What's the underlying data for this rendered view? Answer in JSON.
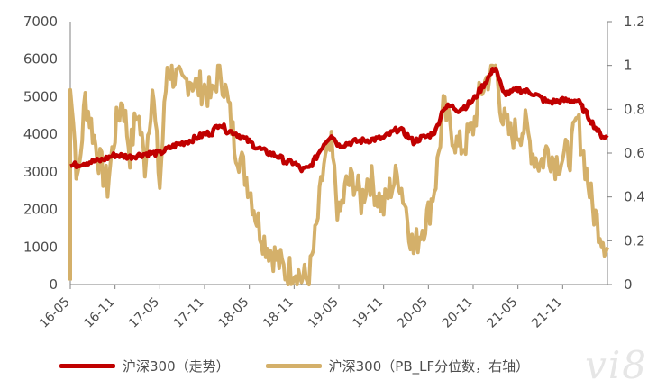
{
  "colors": {
    "index": "#c00000",
    "pb": "#d4b06a",
    "axis": "#808080",
    "text": "#4d4d4d"
  },
  "watermark": "vi8",
  "chart_data": {
    "type": "line",
    "x_categories": [
      "16-05",
      "16-11",
      "17-05",
      "17-11",
      "18-05",
      "18-11",
      "19-05",
      "19-11",
      "20-05",
      "20-11",
      "21-05",
      "21-11"
    ],
    "y_left": {
      "ticks": [
        "0",
        "1000",
        "2000",
        "3000",
        "4000",
        "5000",
        "6000",
        "7000"
      ],
      "ylim": [
        0,
        7000
      ]
    },
    "y_right": {
      "ticks": [
        "0",
        "0.2",
        "0.4",
        "0.6",
        "0.8",
        "1",
        "1.2"
      ],
      "ylim": [
        0,
        1.2
      ]
    },
    "legend_position": "bottom",
    "series": [
      {
        "name": "沪深300（走势）",
        "axis": "left",
        "color": "#c00000",
        "points": [
          [
            "16-05",
            3150
          ],
          [
            "16-07",
            3250
          ],
          [
            "16-09",
            3300
          ],
          [
            "16-11",
            3450
          ],
          [
            "17-01",
            3400
          ],
          [
            "17-03",
            3480
          ],
          [
            "17-05",
            3500
          ],
          [
            "17-07",
            3700
          ],
          [
            "17-09",
            3830
          ],
          [
            "17-11",
            4000
          ],
          [
            "17-12",
            4050
          ],
          [
            "18-01",
            4300
          ],
          [
            "18-02",
            4100
          ],
          [
            "18-03",
            4050
          ],
          [
            "18-05",
            3800
          ],
          [
            "18-06",
            3650
          ],
          [
            "18-07",
            3550
          ],
          [
            "18-09",
            3400
          ],
          [
            "18-10",
            3250
          ],
          [
            "18-11",
            3250
          ],
          [
            "18-12",
            3050
          ],
          [
            "19-01",
            3100
          ],
          [
            "19-02",
            3400
          ],
          [
            "19-03",
            3750
          ],
          [
            "19-04",
            4000
          ],
          [
            "19-05",
            3700
          ],
          [
            "19-07",
            3800
          ],
          [
            "19-09",
            3850
          ],
          [
            "19-11",
            3900
          ],
          [
            "20-01",
            4150
          ],
          [
            "20-02",
            4000
          ],
          [
            "20-03",
            3800
          ],
          [
            "20-04",
            3900
          ],
          [
            "20-05",
            3950
          ],
          [
            "20-06",
            4100
          ],
          [
            "20-07",
            4700
          ],
          [
            "20-08",
            4750
          ],
          [
            "20-09",
            4650
          ],
          [
            "20-10",
            4750
          ],
          [
            "20-11",
            4900
          ],
          [
            "20-12",
            5200
          ],
          [
            "21-01",
            5500
          ],
          [
            "21-02",
            5800
          ],
          [
            "21-03",
            5100
          ],
          [
            "21-04",
            5100
          ],
          [
            "21-05",
            5200
          ],
          [
            "21-07",
            5100
          ],
          [
            "21-09",
            4850
          ],
          [
            "21-11",
            4900
          ],
          [
            "22-01",
            4900
          ],
          [
            "22-02",
            4600
          ],
          [
            "22-03",
            4300
          ],
          [
            "22-04",
            4000
          ],
          [
            "22-05",
            3900
          ]
        ]
      },
      {
        "name": "沪深300（PB_LF分位数，右轴）",
        "axis": "right",
        "color": "#d4b06a",
        "points": [
          [
            "16-05",
            0.02
          ],
          [
            "16-05",
            0.95
          ],
          [
            "16-06",
            0.45
          ],
          [
            "16-07",
            0.85
          ],
          [
            "16-08",
            0.7
          ],
          [
            "16-09",
            0.55
          ],
          [
            "16-10",
            0.45
          ],
          [
            "16-11",
            0.7
          ],
          [
            "16-12",
            0.85
          ],
          [
            "17-01",
            0.6
          ],
          [
            "17-02",
            0.8
          ],
          [
            "17-03",
            0.55
          ],
          [
            "17-04",
            0.9
          ],
          [
            "17-05",
            0.45
          ],
          [
            "17-06",
            1.0
          ],
          [
            "17-07",
            0.95
          ],
          [
            "17-08",
            0.9
          ],
          [
            "17-09",
            0.95
          ],
          [
            "17-10",
            0.9
          ],
          [
            "17-11",
            0.9
          ],
          [
            "17-12",
            0.85
          ],
          [
            "18-01",
            1.0
          ],
          [
            "18-02",
            0.85
          ],
          [
            "18-03",
            0.65
          ],
          [
            "18-04",
            0.55
          ],
          [
            "18-05",
            0.45
          ],
          [
            "18-06",
            0.3
          ],
          [
            "18-07",
            0.2
          ],
          [
            "18-08",
            0.15
          ],
          [
            "18-09",
            0.1
          ],
          [
            "18-10",
            0.05
          ],
          [
            "18-11",
            0.08
          ],
          [
            "18-12",
            0.03
          ],
          [
            "19-01",
            0.02
          ],
          [
            "19-02",
            0.25
          ],
          [
            "19-03",
            0.55
          ],
          [
            "19-04",
            0.62
          ],
          [
            "19-05",
            0.3
          ],
          [
            "19-06",
            0.45
          ],
          [
            "19-07",
            0.48
          ],
          [
            "19-08",
            0.38
          ],
          [
            "19-09",
            0.5
          ],
          [
            "19-10",
            0.42
          ],
          [
            "19-11",
            0.35
          ],
          [
            "19-12",
            0.45
          ],
          [
            "20-01",
            0.5
          ],
          [
            "20-02",
            0.35
          ],
          [
            "20-03",
            0.15
          ],
          [
            "20-04",
            0.25
          ],
          [
            "20-05",
            0.32
          ],
          [
            "20-06",
            0.48
          ],
          [
            "20-07",
            0.8
          ],
          [
            "20-08",
            0.72
          ],
          [
            "20-09",
            0.62
          ],
          [
            "20-10",
            0.65
          ],
          [
            "20-11",
            0.72
          ],
          [
            "20-12",
            0.88
          ],
          [
            "21-01",
            0.95
          ],
          [
            "21-02",
            1.0
          ],
          [
            "21-03",
            0.75
          ],
          [
            "21-04",
            0.68
          ],
          [
            "21-05",
            0.7
          ],
          [
            "21-06",
            0.72
          ],
          [
            "21-07",
            0.6
          ],
          [
            "21-08",
            0.55
          ],
          [
            "21-09",
            0.62
          ],
          [
            "21-10",
            0.56
          ],
          [
            "21-11",
            0.58
          ],
          [
            "21-12",
            0.6
          ],
          [
            "22-01",
            0.75
          ],
          [
            "22-02",
            0.55
          ],
          [
            "22-03",
            0.35
          ],
          [
            "22-04",
            0.25
          ],
          [
            "22-05",
            0.17
          ]
        ]
      }
    ]
  }
}
